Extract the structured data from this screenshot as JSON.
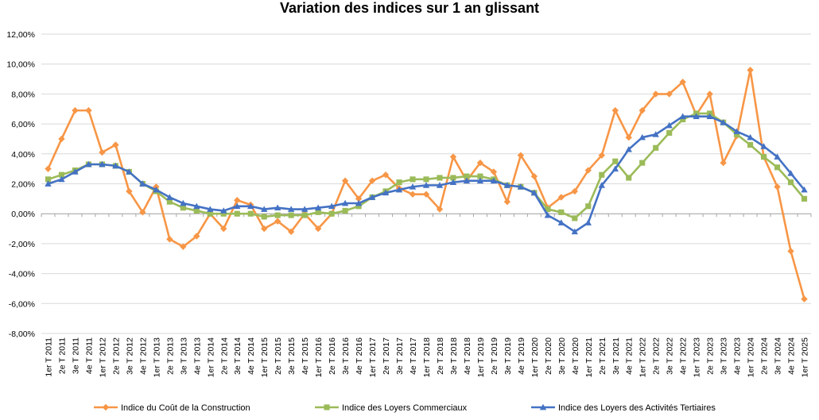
{
  "chart_data": {
    "type": "line",
    "title": "Variation des indices sur 1 an glissant",
    "xlabel": "",
    "ylabel": "",
    "ylim": [
      -8,
      12
    ],
    "y_ticks": [
      12,
      10,
      8,
      6,
      4,
      2,
      0,
      -2,
      -4,
      -6,
      -8
    ],
    "y_tick_labels": [
      "12,00%",
      "10,00%",
      "8,00%",
      "6,00%",
      "4,00%",
      "2,00%",
      "0,00%",
      "-2,00%",
      "-4,00%",
      "-6,00%",
      "-8,00%"
    ],
    "grid": "horizontal",
    "legend_position": "bottom",
    "categories": [
      "1er T 2011",
      "2e T 2011",
      "3e T 2011",
      "4e T 2011",
      "1er T 2012",
      "2e T 2012",
      "3e T 2012",
      "4e T 2012",
      "1er T 2013",
      "2e T 2013",
      "3e T 2013",
      "4e T 2013",
      "1er T 2014",
      "2e T 2014",
      "3e T 2014",
      "4e T 2014",
      "1er T 2015",
      "2e T 2015",
      "3e T 2015",
      "4e T 2015",
      "1er T 2016",
      "2e T 2016",
      "3e T 2016",
      "4e T 2016",
      "1er T 2017",
      "2e T 2017",
      "3e T 2017",
      "4e T 2017",
      "1er T 2018",
      "2e T 2018",
      "3e T 2018",
      "4e T 2018",
      "1er T 2019",
      "2e T 2019",
      "3e T 2019",
      "4e T 2019",
      "1er T 2020",
      "2e T 2020",
      "3e T 2020",
      "4e T 2020",
      "1er T 2021",
      "2e T 2021",
      "3e T 2021",
      "4e T 2021",
      "1er T 2022",
      "2e T 2022",
      "3e T 2022",
      "4e T 2022",
      "1er T 2023",
      "2e T 2023",
      "3e T 2023",
      "4e T 2023",
      "1er T 2024",
      "2e T 2024",
      "3e T 2024",
      "4e T 2024",
      "1er T 2025"
    ],
    "series": [
      {
        "name": "Indice du Coût de la Construction",
        "color": "#f79646",
        "marker": "diamond",
        "values": [
          3.0,
          5.0,
          6.9,
          6.9,
          4.1,
          4.6,
          1.5,
          0.1,
          1.8,
          -1.7,
          -2.2,
          -1.5,
          0.0,
          -1.0,
          0.9,
          0.6,
          -1.0,
          -0.5,
          -1.2,
          0.0,
          -1.0,
          0.0,
          2.2,
          1.0,
          2.2,
          2.6,
          1.7,
          1.3,
          1.3,
          0.3,
          3.8,
          2.2,
          3.4,
          2.8,
          0.8,
          3.9,
          2.5,
          0.4,
          1.1,
          1.5,
          2.9,
          3.9,
          6.9,
          5.1,
          6.9,
          8.0,
          8.0,
          8.8,
          6.6,
          8.0,
          3.4,
          5.2,
          9.6,
          3.8,
          1.8,
          -2.5,
          -5.7
        ]
      },
      {
        "name": "Indice des Loyers Commerciaux",
        "color": "#9bbb59",
        "marker": "square",
        "values": [
          2.3,
          2.6,
          2.9,
          3.3,
          3.3,
          3.2,
          2.8,
          2.0,
          1.5,
          0.8,
          0.4,
          0.2,
          0.0,
          0.0,
          0.0,
          0.0,
          -0.2,
          -0.1,
          -0.1,
          -0.1,
          0.1,
          0.0,
          0.2,
          0.5,
          1.1,
          1.5,
          2.1,
          2.3,
          2.3,
          2.4,
          2.4,
          2.5,
          2.5,
          2.3,
          1.9,
          1.8,
          1.4,
          0.3,
          0.1,
          -0.3,
          0.5,
          2.6,
          3.5,
          2.4,
          3.4,
          4.4,
          5.4,
          6.3,
          6.7,
          6.7,
          6.1,
          5.3,
          4.6,
          3.8,
          3.1,
          2.1,
          1.0
        ]
      },
      {
        "name": "Indice des Loyers des Activités Tertiaires",
        "color": "#4472c4",
        "marker": "triangle",
        "values": [
          2.0,
          2.3,
          2.8,
          3.3,
          3.3,
          3.2,
          2.8,
          2.0,
          1.6,
          1.1,
          0.7,
          0.5,
          0.3,
          0.2,
          0.5,
          0.5,
          0.3,
          0.4,
          0.3,
          0.3,
          0.4,
          0.5,
          0.7,
          0.7,
          1.1,
          1.4,
          1.6,
          1.8,
          1.9,
          1.9,
          2.1,
          2.2,
          2.2,
          2.2,
          1.9,
          1.8,
          1.4,
          -0.1,
          -0.6,
          -1.2,
          -0.6,
          1.9,
          3.0,
          4.3,
          5.1,
          5.3,
          5.9,
          6.5,
          6.5,
          6.5,
          6.1,
          5.5,
          5.1,
          4.5,
          3.8,
          2.7,
          1.6
        ]
      }
    ]
  }
}
